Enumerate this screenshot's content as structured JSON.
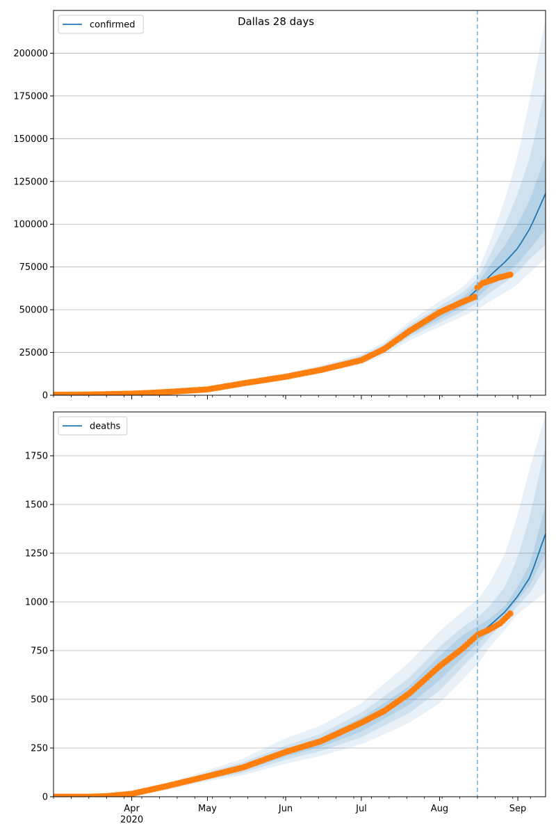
{
  "title": "Dallas 28 days",
  "colors": {
    "model": "#1f77b4",
    "observed": "#ff7f0e",
    "band": "#1f77b4",
    "forecast_line": "#7fb2d8",
    "grid": "#b0b0b0"
  },
  "x_axis": {
    "range": [
      "2020-03-01",
      "2020-09-12"
    ],
    "major_ticks": [
      {
        "date": "2020-04-01",
        "label": "Apr",
        "sublabel": "2020"
      },
      {
        "date": "2020-05-01",
        "label": "May",
        "sublabel": ""
      },
      {
        "date": "2020-06-01",
        "label": "Jun",
        "sublabel": ""
      },
      {
        "date": "2020-07-01",
        "label": "Jul",
        "sublabel": ""
      },
      {
        "date": "2020-08-01",
        "label": "Aug",
        "sublabel": ""
      },
      {
        "date": "2020-09-01",
        "label": "Sep",
        "sublabel": ""
      }
    ]
  },
  "chart_data": [
    {
      "type": "line",
      "legend": {
        "label": "confirmed",
        "placement": "top-left"
      },
      "ylim": [
        0,
        225000
      ],
      "yticks": [
        0,
        25000,
        50000,
        75000,
        100000,
        125000,
        150000,
        175000,
        200000
      ],
      "grid": "y",
      "forecast_start": "2020-08-16",
      "model": {
        "name": "confirmed",
        "x": [
          "2020-03-01",
          "2020-03-15",
          "2020-04-01",
          "2020-04-15",
          "2020-05-01",
          "2020-05-15",
          "2020-06-01",
          "2020-06-15",
          "2020-07-01",
          "2020-07-10",
          "2020-07-20",
          "2020-08-01",
          "2020-08-10",
          "2020-08-16",
          "2020-08-21",
          "2020-08-27",
          "2020-09-01",
          "2020-09-06",
          "2020-09-12"
        ],
        "median": [
          300,
          500,
          1000,
          2000,
          3500,
          7000,
          11000,
          15000,
          21000,
          27000,
          37000,
          47000,
          54000,
          62000,
          70000,
          78000,
          86000,
          98000,
          118000
        ],
        "bands": [
          {
            "lower": [
              200,
              400,
              800,
              1700,
              3000,
              6000,
              9500,
              13000,
              18000,
              23500,
              32000,
              40000,
              46000,
              50000,
              55000,
              60000,
              65000,
              72000,
              80000
            ],
            "upper": [
              400,
              600,
              1300,
              2500,
              4200,
              8300,
              12800,
              17500,
              24000,
              31000,
              43000,
              55000,
              63000,
              72000,
              90000,
              115000,
              140000,
              175000,
              220000
            ]
          },
          {
            "lower": [
              250,
              450,
              900,
              1800,
              3200,
              6400,
              10000,
              13800,
              19000,
              24800,
              34000,
              42500,
              49000,
              54000,
              60000,
              66000,
              72000,
              80000,
              88000
            ],
            "upper": [
              350,
              550,
              1200,
              2300,
              3900,
              7800,
              12200,
              16700,
              23000,
              29800,
              41000,
              52000,
              60000,
              68000,
              82000,
              100000,
              118000,
              140000,
              180000
            ]
          },
          {
            "lower": [
              270,
              470,
              950,
              1900,
              3300,
              6600,
              10400,
              14300,
              19800,
              25800,
              35200,
              44500,
              51500,
              57000,
              64000,
              70500,
              77000,
              86000,
              97000
            ],
            "upper": [
              330,
              530,
              1100,
              2150,
              3700,
              7400,
              11600,
              15800,
              22200,
              28400,
              39000,
              49500,
              57000,
              65000,
              76000,
              88000,
              100000,
              115000,
              140000
            ]
          }
        ]
      },
      "observed": {
        "name": "observed",
        "x": [
          "2020-03-01",
          "2020-03-15",
          "2020-04-01",
          "2020-04-15",
          "2020-05-01",
          "2020-05-15",
          "2020-06-01",
          "2020-06-15",
          "2020-07-01",
          "2020-07-10",
          "2020-07-20",
          "2020-08-01",
          "2020-08-10",
          "2020-08-15",
          "2020-08-16",
          "2020-08-18",
          "2020-08-21",
          "2020-08-25",
          "2020-08-29"
        ],
        "y": [
          300,
          400,
          900,
          1900,
          3400,
          6900,
          10800,
          14800,
          20500,
          27000,
          37500,
          48500,
          54500,
          57500,
          63000,
          65500,
          67000,
          69000,
          70500
        ]
      }
    },
    {
      "type": "line",
      "legend": {
        "label": "deaths",
        "placement": "top-left"
      },
      "ylim": [
        0,
        1975
      ],
      "yticks": [
        0,
        250,
        500,
        750,
        1000,
        1250,
        1500,
        1750
      ],
      "grid": "y",
      "forecast_start": "2020-08-16",
      "model": {
        "name": "deaths",
        "x": [
          "2020-03-01",
          "2020-03-15",
          "2020-03-22",
          "2020-04-01",
          "2020-04-15",
          "2020-05-01",
          "2020-05-15",
          "2020-06-01",
          "2020-06-15",
          "2020-07-01",
          "2020-07-10",
          "2020-07-20",
          "2020-08-01",
          "2020-08-10",
          "2020-08-16",
          "2020-08-21",
          "2020-08-27",
          "2020-09-01",
          "2020-09-06",
          "2020-09-12"
        ],
        "median": [
          0,
          0,
          3,
          15,
          50,
          105,
          150,
          225,
          280,
          370,
          440,
          520,
          660,
          770,
          830,
          880,
          950,
          1030,
          1130,
          1350
        ],
        "bands": [
          {
            "lower": [
              0,
              0,
              1,
              10,
              35,
              80,
              110,
              170,
              210,
              270,
              320,
              380,
              480,
              600,
              680,
              770,
              860,
              940,
              990,
              1050
            ],
            "upper": [
              0,
              2,
              6,
              22,
              70,
              135,
              195,
              300,
              365,
              480,
              580,
              690,
              850,
              950,
              1010,
              1100,
              1250,
              1450,
              1700,
              1960
            ]
          },
          {
            "lower": [
              0,
              0,
              2,
              12,
              40,
              88,
              123,
              190,
              235,
              305,
              365,
              430,
              545,
              665,
              745,
              820,
              905,
              980,
              1050,
              1180
            ],
            "upper": [
              0,
              1,
              5,
              19,
              62,
              124,
              177,
              262,
              323,
              432,
              515,
              610,
              770,
              870,
              920,
              980,
              1080,
              1230,
              1450,
              1800
            ]
          },
          {
            "lower": [
              0,
              0,
              2,
              13,
              44,
              95,
              135,
              206,
              256,
              335,
              400,
              472,
              598,
              712,
              785,
              850,
              930,
              1010,
              1090,
              1250
            ],
            "upper": [
              0,
              1,
              4,
              17,
              57,
              115,
              165,
              245,
              304,
              405,
              480,
              568,
              722,
              828,
              875,
              915,
              980,
              1080,
              1200,
              1500
            ]
          }
        ]
      },
      "observed": {
        "name": "observed",
        "x": [
          "2020-03-01",
          "2020-03-15",
          "2020-03-22",
          "2020-04-01",
          "2020-04-15",
          "2020-05-01",
          "2020-05-15",
          "2020-06-01",
          "2020-06-15",
          "2020-07-01",
          "2020-07-10",
          "2020-07-20",
          "2020-08-01",
          "2020-08-10",
          "2020-08-16",
          "2020-08-21",
          "2020-08-25",
          "2020-08-29"
        ],
        "y": [
          0,
          0,
          3,
          15,
          55,
          105,
          150,
          230,
          285,
          380,
          440,
          530,
          670,
          760,
          830,
          860,
          890,
          940
        ]
      }
    }
  ]
}
